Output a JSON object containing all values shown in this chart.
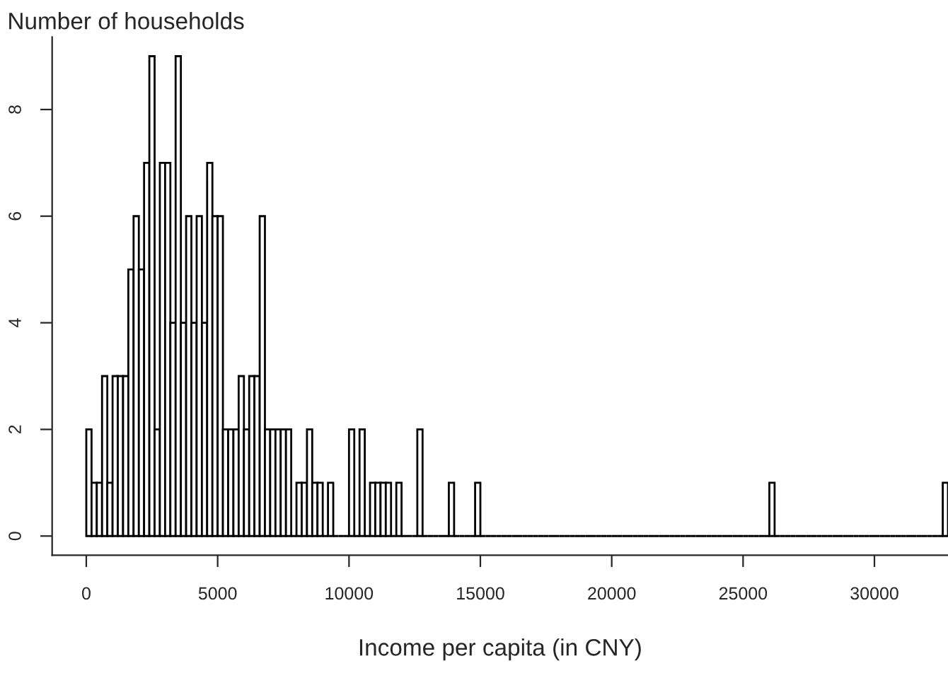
{
  "chart_data": {
    "type": "histogram",
    "title": "Number of households",
    "xlabel": "Income per capita (in CNY)",
    "color": "#000000",
    "bins": [
      0,
      200,
      400,
      600,
      800,
      1000,
      1200,
      1400,
      1600,
      1800,
      2000,
      2200,
      2400,
      2600,
      2800,
      3000,
      3200,
      3400,
      3600,
      3800,
      4000,
      4200,
      4400,
      4600,
      4800,
      5000,
      5200,
      5400,
      5600,
      5800,
      6000,
      6200,
      6400,
      6600,
      6800,
      7000,
      7200,
      7400,
      7600,
      7800,
      8000,
      8200,
      8400,
      8600,
      8800,
      9000,
      9200,
      9400,
      9600,
      9800,
      10000,
      10200,
      10400,
      10600,
      10800,
      11000,
      11200,
      11400,
      11600,
      11800,
      12000,
      12200,
      12400,
      12600,
      12800,
      13000,
      13200,
      13400,
      13600,
      13800,
      14000,
      14200,
      14400,
      14600,
      14800,
      15000,
      15200,
      15400,
      15600,
      15800,
      16000,
      16200,
      16400,
      16600,
      16800,
      17000,
      17200,
      17400,
      17600,
      17800,
      18000,
      18200,
      18400,
      18600,
      18800,
      19000,
      19200,
      19400,
      19600,
      19800,
      20000,
      20200,
      20400,
      20600,
      20800,
      21000,
      21200,
      21400,
      21600,
      21800,
      22000,
      22200,
      22400,
      22600,
      22800,
      23000,
      23200,
      23400,
      23600,
      23800,
      24000,
      24200,
      24400,
      24600,
      24800,
      25000,
      25200,
      25400,
      25600,
      25800,
      26000,
      26200,
      26400,
      26600,
      26800,
      27000,
      27200,
      27400,
      27600,
      27800,
      28000,
      28200,
      28400,
      28600,
      28800,
      29000,
      29200,
      29400,
      29600,
      29800,
      30000,
      30200,
      30400,
      30600,
      30800,
      31000,
      31200,
      31400,
      31600,
      31800,
      32000,
      32200,
      32400,
      32600,
      32800
    ],
    "values": [
      2,
      1,
      1,
      3,
      1,
      3,
      3,
      3,
      5,
      6,
      5,
      7,
      9,
      2,
      7,
      7,
      4,
      9,
      4,
      6,
      4,
      6,
      4,
      7,
      6,
      6,
      2,
      2,
      2,
      3,
      2,
      3,
      3,
      6,
      2,
      2,
      2,
      2,
      2,
      0,
      1,
      1,
      2,
      1,
      1,
      0,
      1,
      0,
      0,
      0,
      2,
      0,
      2,
      0,
      1,
      1,
      1,
      1,
      0,
      1,
      0,
      0,
      0,
      2,
      0,
      0,
      0,
      0,
      0,
      1,
      0,
      0,
      0,
      0,
      1,
      0,
      0,
      0,
      0,
      0,
      0,
      0,
      0,
      0,
      0,
      0,
      0,
      0,
      0,
      0,
      0,
      0,
      0,
      0,
      0,
      0,
      0,
      0,
      0,
      0,
      0,
      0,
      0,
      0,
      0,
      0,
      0,
      0,
      0,
      0,
      0,
      0,
      0,
      0,
      0,
      0,
      0,
      0,
      0,
      0,
      0,
      0,
      0,
      0,
      0,
      0,
      0,
      0,
      0,
      0,
      1,
      0,
      0,
      0,
      0,
      0,
      0,
      0,
      0,
      0,
      0,
      0,
      0,
      0,
      0,
      0,
      0,
      0,
      0,
      0,
      0,
      0,
      0,
      0,
      0,
      0,
      0,
      0,
      0,
      0,
      0,
      0,
      0,
      1
    ],
    "xlim": [
      -1300,
      32800
    ],
    "ylim": [
      -0.36,
      9.36
    ],
    "xticks": [
      0,
      5000,
      10000,
      15000,
      20000,
      25000,
      30000
    ],
    "yticks": [
      0,
      2,
      4,
      6,
      8
    ]
  }
}
